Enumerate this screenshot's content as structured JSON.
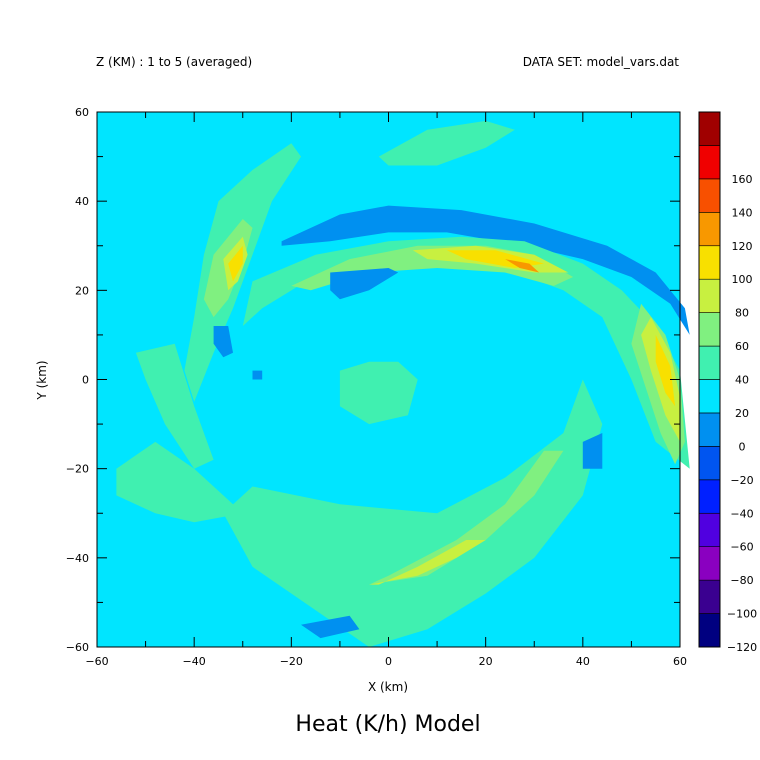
{
  "header": {
    "left": "Z (KM) : 1 to 5 (averaged)",
    "right": "DATA SET: model_vars.dat"
  },
  "chart_data": {
    "type": "heatmap",
    "title": "Heat (K/h) Model",
    "xlabel": "X (km)",
    "ylabel": "Y (km)",
    "xlim": [
      -60,
      60
    ],
    "ylim": [
      -60,
      60
    ],
    "x_ticks": [
      -60,
      -40,
      -20,
      0,
      20,
      40,
      60
    ],
    "y_ticks": [
      -60,
      -40,
      -20,
      0,
      20,
      40,
      60
    ],
    "x_tick_labels": [
      "−60",
      "−40",
      "−20",
      "0",
      "20",
      "40",
      "60"
    ],
    "y_tick_labels": [
      "−60",
      "−40",
      "−20",
      "0",
      "20",
      "40",
      "60"
    ],
    "background_level": 0,
    "colorbar": {
      "levels": [
        -120,
        -100,
        -80,
        -60,
        -40,
        -20,
        0,
        20,
        40,
        60,
        80,
        100,
        120,
        140,
        160
      ],
      "labels": [
        "−120",
        "−100",
        "−80",
        "−60",
        "−40",
        "−20",
        "0",
        "20",
        "40",
        "60",
        "80",
        "100",
        "120",
        "140",
        "160"
      ],
      "colors": [
        "#000080",
        "#3a0090",
        "#8a00c0",
        "#5000e0",
        "#0020ff",
        "#0055f0",
        "#0090f0",
        "#00e5ff",
        "#40f0b0",
        "#80f080",
        "#c8f040",
        "#f8e000",
        "#f89800",
        "#f85000",
        "#f00000",
        "#a00000"
      ]
    },
    "regions": [
      {
        "name": "north-arc-negative",
        "color": "#0090f0",
        "points": [
          [
            -22,
            31
          ],
          [
            -10,
            37
          ],
          [
            0,
            39
          ],
          [
            15,
            38
          ],
          [
            30,
            35
          ],
          [
            45,
            30
          ],
          [
            55,
            24
          ],
          [
            61,
            16
          ],
          [
            62,
            10
          ],
          [
            58,
            17
          ],
          [
            50,
            23
          ],
          [
            40,
            27
          ],
          [
            28,
            30
          ],
          [
            12,
            33
          ],
          [
            0,
            33
          ],
          [
            -12,
            31
          ],
          [
            -22,
            30
          ]
        ]
      },
      {
        "name": "north-arc-positive",
        "color": "#40f0b0",
        "points": [
          [
            -28,
            22
          ],
          [
            -15,
            28
          ],
          [
            0,
            31
          ],
          [
            15,
            32
          ],
          [
            28,
            31
          ],
          [
            40,
            26
          ],
          [
            48,
            20
          ],
          [
            55,
            12
          ],
          [
            60,
            2
          ],
          [
            62,
            -20
          ],
          [
            55,
            -14
          ],
          [
            50,
            0
          ],
          [
            44,
            14
          ],
          [
            36,
            20
          ],
          [
            26,
            24
          ],
          [
            14,
            26
          ],
          [
            0,
            26
          ],
          [
            -14,
            24
          ],
          [
            -26,
            16
          ],
          [
            -30,
            12
          ]
        ]
      },
      {
        "name": "north-arc-band-20",
        "color": "#80f080",
        "points": [
          [
            -20,
            21
          ],
          [
            -8,
            27
          ],
          [
            6,
            30
          ],
          [
            20,
            30
          ],
          [
            30,
            28
          ],
          [
            38,
            23
          ],
          [
            34,
            21
          ],
          [
            24,
            24
          ],
          [
            10,
            25
          ],
          [
            -4,
            24
          ],
          [
            -16,
            20
          ]
        ]
      },
      {
        "name": "north-arc-band-40",
        "color": "#c8f040",
        "points": [
          [
            5,
            29
          ],
          [
            18,
            30
          ],
          [
            30,
            28
          ],
          [
            37,
            24
          ],
          [
            30,
            24
          ],
          [
            18,
            26
          ],
          [
            8,
            27
          ]
        ]
      },
      {
        "name": "north-arc-band-60",
        "color": "#f8e000",
        "points": [
          [
            12,
            29
          ],
          [
            22,
            29
          ],
          [
            32,
            26
          ],
          [
            26,
            25
          ],
          [
            16,
            27
          ]
        ]
      },
      {
        "name": "north-arc-band-80",
        "color": "#f89800",
        "points": [
          [
            24,
            27
          ],
          [
            29,
            26
          ],
          [
            31,
            24
          ],
          [
            27,
            25
          ]
        ]
      },
      {
        "name": "east-band-positive",
        "color": "#80f080",
        "points": [
          [
            52,
            17
          ],
          [
            57,
            10
          ],
          [
            60,
            0
          ],
          [
            61,
            -14
          ],
          [
            59,
            -19
          ],
          [
            56,
            -12
          ],
          [
            53,
            -2
          ],
          [
            50,
            8
          ]
        ]
      },
      {
        "name": "east-band-40",
        "color": "#c8f040",
        "points": [
          [
            54,
            14
          ],
          [
            58,
            6
          ],
          [
            60,
            -4
          ],
          [
            60,
            -14
          ],
          [
            57,
            -8
          ],
          [
            54,
            2
          ],
          [
            52,
            10
          ]
        ]
      },
      {
        "name": "east-band-60",
        "color": "#f8e000",
        "points": [
          [
            55,
            10
          ],
          [
            58,
            3
          ],
          [
            59,
            -6
          ],
          [
            57,
            -3
          ],
          [
            55,
            4
          ]
        ]
      },
      {
        "name": "west-arm-positive",
        "color": "#40f0b0",
        "points": [
          [
            -35,
            40
          ],
          [
            -28,
            47
          ],
          [
            -20,
            53
          ],
          [
            -18,
            50
          ],
          [
            -24,
            40
          ],
          [
            -28,
            28
          ],
          [
            -32,
            16
          ],
          [
            -36,
            6
          ],
          [
            -40,
            -5
          ],
          [
            -42,
            2
          ],
          [
            -40,
            14
          ],
          [
            -38,
            28
          ]
        ]
      },
      {
        "name": "west-arm-20",
        "color": "#80f080",
        "points": [
          [
            -36,
            28
          ],
          [
            -30,
            36
          ],
          [
            -28,
            34
          ],
          [
            -30,
            26
          ],
          [
            -33,
            18
          ],
          [
            -36,
            14
          ],
          [
            -38,
            18
          ]
        ]
      },
      {
        "name": "west-arm-40",
        "color": "#c8f040",
        "points": [
          [
            -34,
            27
          ],
          [
            -30,
            32
          ],
          [
            -29,
            28
          ],
          [
            -31,
            22
          ],
          [
            -33,
            20
          ]
        ]
      },
      {
        "name": "west-arm-60",
        "color": "#f8e000",
        "points": [
          [
            -33,
            26
          ],
          [
            -30,
            30
          ],
          [
            -30,
            26
          ],
          [
            -32,
            22
          ]
        ]
      },
      {
        "name": "west-inner-negative",
        "color": "#0090f0",
        "points": [
          [
            -36,
            12
          ],
          [
            -33,
            12
          ],
          [
            -32,
            6
          ],
          [
            -34,
            5
          ],
          [
            -36,
            8
          ]
        ]
      },
      {
        "name": "west-small-negative",
        "color": "#0090f0",
        "points": [
          [
            -28,
            2
          ],
          [
            -26,
            2
          ],
          [
            -26,
            0
          ],
          [
            -28,
            0
          ]
        ]
      },
      {
        "name": "inner-north-negative",
        "color": "#0090f0",
        "points": [
          [
            -12,
            24
          ],
          [
            0,
            25
          ],
          [
            2,
            24
          ],
          [
            -4,
            20
          ],
          [
            -10,
            18
          ],
          [
            -12,
            20
          ]
        ]
      },
      {
        "name": "southwest-positive",
        "color": "#40f0b0",
        "points": [
          [
            -56,
            -20
          ],
          [
            -48,
            -14
          ],
          [
            -40,
            -20
          ],
          [
            -34,
            -26
          ],
          [
            -30,
            -30
          ],
          [
            -40,
            -32
          ],
          [
            -48,
            -30
          ],
          [
            -56,
            -26
          ]
        ]
      },
      {
        "name": "west-ridge-positive",
        "color": "#40f0b0",
        "points": [
          [
            -52,
            6
          ],
          [
            -44,
            8
          ],
          [
            -40,
            -6
          ],
          [
            -36,
            -18
          ],
          [
            -40,
            -20
          ],
          [
            -46,
            -10
          ],
          [
            -50,
            0
          ]
        ]
      },
      {
        "name": "south-arc-positive",
        "color": "#40f0b0",
        "points": [
          [
            -28,
            -24
          ],
          [
            -10,
            -28
          ],
          [
            10,
            -30
          ],
          [
            24,
            -22
          ],
          [
            36,
            -12
          ],
          [
            40,
            0
          ],
          [
            44,
            -10
          ],
          [
            40,
            -26
          ],
          [
            30,
            -40
          ],
          [
            20,
            -48
          ],
          [
            8,
            -56
          ],
          [
            -4,
            -60
          ],
          [
            -20,
            -48
          ],
          [
            -28,
            -42
          ],
          [
            -34,
            -30
          ]
        ]
      },
      {
        "name": "south-arc-band-20",
        "color": "#80f080",
        "points": [
          [
            -4,
            -46
          ],
          [
            8,
            -44
          ],
          [
            20,
            -36
          ],
          [
            30,
            -26
          ],
          [
            36,
            -16
          ],
          [
            32,
            -16
          ],
          [
            24,
            -28
          ],
          [
            14,
            -36
          ],
          [
            0,
            -44
          ]
        ]
      },
      {
        "name": "south-arc-band-40",
        "color": "#c8f040",
        "points": [
          [
            -4,
            -46
          ],
          [
            6,
            -44
          ],
          [
            14,
            -40
          ],
          [
            20,
            -36
          ],
          [
            16,
            -36
          ],
          [
            6,
            -42
          ],
          [
            -2,
            -46
          ]
        ]
      },
      {
        "name": "south-negative",
        "color": "#0090f0",
        "points": [
          [
            -18,
            -55
          ],
          [
            -8,
            -53
          ],
          [
            -6,
            -56
          ],
          [
            -14,
            -58
          ]
        ]
      },
      {
        "name": "center-positive",
        "color": "#40f0b0",
        "points": [
          [
            -10,
            2
          ],
          [
            -4,
            4
          ],
          [
            2,
            4
          ],
          [
            6,
            0
          ],
          [
            4,
            -8
          ],
          [
            -4,
            -10
          ],
          [
            -10,
            -6
          ]
        ]
      },
      {
        "name": "east-small-negative",
        "color": "#0090f0",
        "points": [
          [
            40,
            -14
          ],
          [
            44,
            -12
          ],
          [
            44,
            -20
          ],
          [
            40,
            -20
          ]
        ]
      },
      {
        "name": "north-positive",
        "color": "#40f0b0",
        "points": [
          [
            -2,
            50
          ],
          [
            8,
            56
          ],
          [
            20,
            58
          ],
          [
            26,
            56
          ],
          [
            20,
            52
          ],
          [
            10,
            48
          ],
          [
            0,
            48
          ]
        ]
      }
    ]
  }
}
